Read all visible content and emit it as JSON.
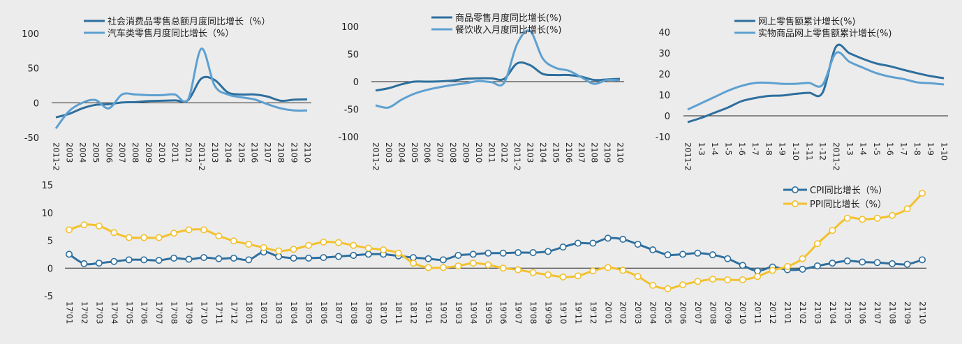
{
  "colors": {
    "dark": "#2e6f9e",
    "light": "#5ea0d0",
    "yellow": "#f2c12e",
    "marker_fill": "#ffffff"
  },
  "chart_data": [
    {
      "type": "line",
      "ylim": [
        -50,
        100
      ],
      "yticks": [
        "100",
        "50",
        "0",
        "-50"
      ],
      "x": [
        "2011-2",
        "2003",
        "2004",
        "2005",
        "2006",
        "2007",
        "2008",
        "2009",
        "2010",
        "2011",
        "2012",
        "2011-2",
        "2103",
        "2104",
        "2105",
        "2106",
        "2107",
        "2108",
        "2109",
        "2110"
      ],
      "series": [
        {
          "name": "社会消费品零售总额月度同比增长（%）",
          "color": "dark",
          "values": [
            -21,
            -16,
            -8,
            -3,
            -2,
            0.5,
            1,
            2.5,
            3,
            3.5,
            4,
            35,
            33,
            15,
            12,
            12,
            9,
            3,
            4.5,
            4.9
          ]
        },
        {
          "name": "汽车类零售月度同比增长（%）",
          "color": "light",
          "values": [
            -37,
            -12,
            0,
            4,
            -8,
            12,
            12,
            11,
            11,
            12,
            5,
            78,
            25,
            12,
            8,
            5,
            -2,
            -8,
            -11,
            -11
          ]
        }
      ]
    },
    {
      "type": "line",
      "ylim": [
        -100,
        100
      ],
      "yticks": [
        "100",
        "50",
        "0",
        "-50",
        "-100"
      ],
      "x": [
        "2011-2",
        "2003",
        "2004",
        "2005",
        "2006",
        "2007",
        "2008",
        "2009",
        "2010",
        "2011",
        "2012",
        "2011-2",
        "2103",
        "2104",
        "2105",
        "2106",
        "2107",
        "2108",
        "2109",
        "2110"
      ],
      "series": [
        {
          "name": "商品零售月度同比增长(%)",
          "color": "dark",
          "values": [
            -16,
            -12,
            -5,
            0,
            0,
            0.5,
            2,
            5,
            6,
            6,
            5,
            33,
            30,
            14,
            12,
            12,
            9,
            3,
            4,
            5
          ]
        },
        {
          "name": "餐饮收入月度同比增长(%)",
          "color": "light",
          "values": [
            -43,
            -47,
            -33,
            -22,
            -15,
            -10,
            -6,
            -3,
            1,
            -1,
            -2,
            68,
            92,
            42,
            25,
            20,
            8,
            -4,
            3,
            2
          ]
        }
      ]
    },
    {
      "type": "line",
      "ylim": [
        -10,
        40
      ],
      "yticks": [
        "40",
        "30",
        "20",
        "10",
        "0",
        "-10"
      ],
      "x": [
        "2011-2",
        "1-3",
        "1-4",
        "1-5",
        "1-6",
        "1-7",
        "1-8",
        "1-9",
        "1-10",
        "1-11",
        "1-12",
        "2011-2",
        "1-3",
        "1-4",
        "1-5",
        "1-6",
        "1-7",
        "1-8",
        "1-9",
        "1-10"
      ],
      "series": [
        {
          "name": "网上零售额累计增长(%)",
          "color": "dark",
          "values": [
            -3,
            -1,
            1.5,
            4,
            7,
            8.5,
            9.5,
            9.7,
            10.5,
            11,
            11,
            33,
            29.9,
            27.2,
            25,
            23.7,
            22,
            20.4,
            19,
            18
          ]
        },
        {
          "name": "实物商品网上零售额累计增长(%)",
          "color": "light",
          "values": [
            3,
            6,
            9,
            12,
            14.3,
            15.7,
            15.8,
            15.3,
            15.3,
            15.7,
            14.8,
            30,
            25.8,
            23,
            20.4,
            18.7,
            17.6,
            16,
            15.6,
            15
          ]
        }
      ]
    },
    {
      "type": "line",
      "ylim": [
        -5,
        15
      ],
      "yticks": [
        "15",
        "10",
        "5",
        "0",
        "-5"
      ],
      "x": [
        "17'01",
        "17'02",
        "17'03",
        "17'04",
        "17'05",
        "17'06",
        "17'07",
        "17'08",
        "17'09",
        "17'10",
        "17'11",
        "17'12",
        "18'01",
        "18'02",
        "18'03",
        "18'04",
        "18'05",
        "18'06",
        "18'07",
        "18'08",
        "18'09",
        "18'10",
        "18'11",
        "18'12",
        "19'01",
        "19'02",
        "19'03",
        "19'04",
        "19'05",
        "19'06",
        "19'07",
        "19'08",
        "19'09",
        "19'10",
        "19'11",
        "19'12",
        "20'01",
        "20'02",
        "20'03",
        "20'04",
        "20'05",
        "20'06",
        "20'07",
        "20'08",
        "20'09",
        "20'10",
        "20'11",
        "20'12",
        "21'01",
        "21'02",
        "21'03",
        "21'04",
        "21'05",
        "21'06",
        "21'07",
        "21'08",
        "21'09",
        "21'10"
      ],
      "series": [
        {
          "name": "CPI同比增长（%）",
          "color": "dark",
          "values": [
            2.5,
            0.8,
            0.9,
            1.2,
            1.5,
            1.5,
            1.4,
            1.8,
            1.6,
            1.9,
            1.7,
            1.8,
            1.5,
            2.9,
            2.1,
            1.8,
            1.8,
            1.9,
            2.1,
            2.3,
            2.5,
            2.5,
            2.2,
            1.9,
            1.7,
            1.5,
            2.3,
            2.5,
            2.7,
            2.7,
            2.8,
            2.8,
            3.0,
            3.8,
            4.5,
            4.5,
            5.4,
            5.2,
            4.3,
            3.3,
            2.4,
            2.5,
            2.7,
            2.4,
            1.7,
            0.5,
            -0.5,
            0.2,
            -0.3,
            -0.2,
            0.4,
            0.9,
            1.3,
            1.1,
            1.0,
            0.8,
            0.7,
            1.5
          ]
        },
        {
          "name": "PPI同比增长（%）",
          "color": "yellow",
          "values": [
            6.9,
            7.8,
            7.6,
            6.4,
            5.5,
            5.5,
            5.5,
            6.3,
            6.9,
            6.9,
            5.8,
            4.9,
            4.3,
            3.7,
            3.1,
            3.4,
            4.1,
            4.7,
            4.6,
            4.1,
            3.6,
            3.3,
            2.7,
            0.9,
            0.1,
            0.1,
            0.4,
            0.9,
            0.6,
            0.0,
            -0.3,
            -0.8,
            -1.2,
            -1.6,
            -1.4,
            -0.5,
            0.1,
            -0.4,
            -1.5,
            -3.1,
            -3.7,
            -3.0,
            -2.4,
            -2.0,
            -2.1,
            -2.1,
            -1.5,
            -0.4,
            0.3,
            1.7,
            4.4,
            6.8,
            9.0,
            8.8,
            9.0,
            9.5,
            10.7,
            13.5
          ]
        }
      ]
    }
  ]
}
